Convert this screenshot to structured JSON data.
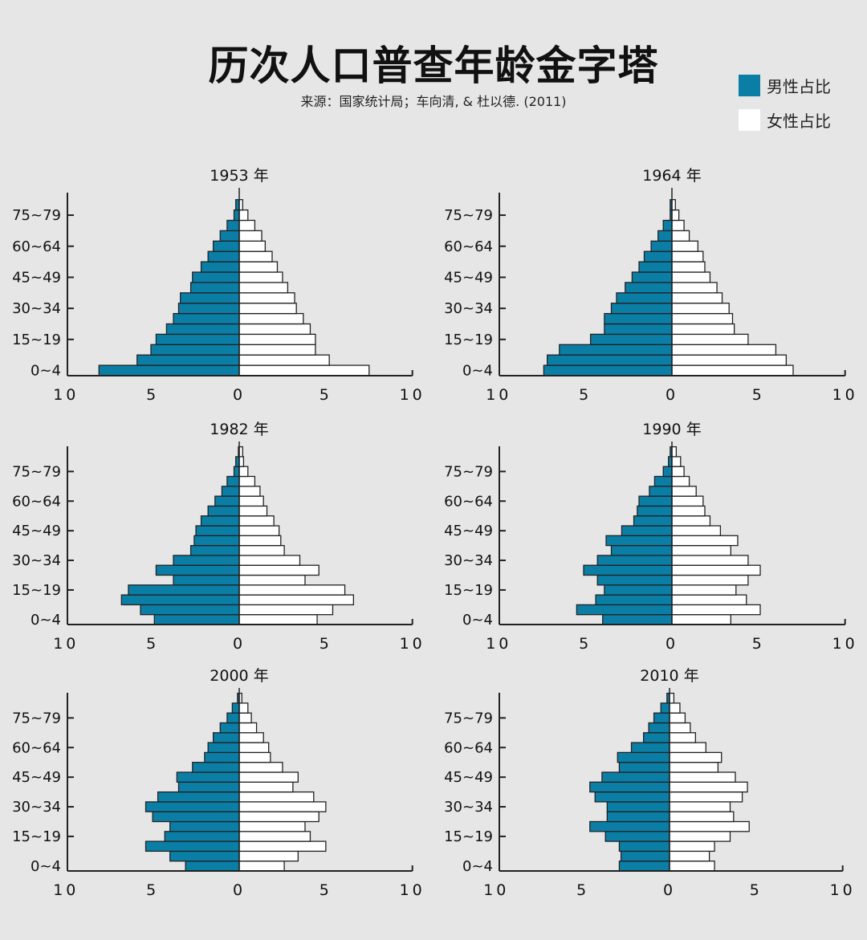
{
  "header": {
    "title": "历次人口普查年龄金字塔",
    "subtitle": "来源：国家统计局；车向清, & 杜以德. (2011)"
  },
  "legend": [
    {
      "label": "男性占比",
      "color": "#0b7ea6"
    },
    {
      "label": "女性占比",
      "color": "#ffffff"
    }
  ],
  "chart_data": [
    {
      "type": "bar",
      "orientation": "horizontal-pyramid",
      "title": "1953 年",
      "y_tick_labels": [
        "0~4",
        "15~19",
        "30~34",
        "45~49",
        "60~64",
        "75~79"
      ],
      "x_tick_labels": [
        "10",
        "5",
        "0",
        "5",
        "10"
      ],
      "xlim": [
        -10,
        10
      ],
      "series": [
        {
          "name": "男性占比",
          "values": [
            8.1,
            5.9,
            5.1,
            4.8,
            4.2,
            3.8,
            3.5,
            3.4,
            2.8,
            2.7,
            2.2,
            1.8,
            1.5,
            1.1,
            0.7,
            0.3,
            0.2
          ]
        },
        {
          "name": "女性占比",
          "values": [
            7.5,
            5.2,
            4.4,
            4.4,
            4.1,
            3.7,
            3.3,
            3.2,
            2.8,
            2.5,
            2.2,
            1.9,
            1.5,
            1.3,
            0.9,
            0.5,
            0.2
          ]
        }
      ]
    },
    {
      "type": "bar",
      "orientation": "horizontal-pyramid",
      "title": "1964 年",
      "y_tick_labels": [
        "0~4",
        "15~19",
        "30~34",
        "45~49",
        "60~64",
        "75~79"
      ],
      "x_tick_labels": [
        "10",
        "5",
        "0",
        "5",
        "10"
      ],
      "xlim": [
        -10,
        10
      ],
      "series": [
        {
          "name": "男性占比",
          "values": [
            7.4,
            7.2,
            6.5,
            4.7,
            3.9,
            3.9,
            3.5,
            3.2,
            2.7,
            2.3,
            1.9,
            1.6,
            1.2,
            0.8,
            0.5,
            0.1,
            0.1
          ]
        },
        {
          "name": "女性占比",
          "values": [
            7.0,
            6.6,
            6.0,
            4.4,
            3.6,
            3.5,
            3.3,
            2.9,
            2.6,
            2.2,
            1.9,
            1.8,
            1.5,
            1.0,
            0.7,
            0.4,
            0.2
          ]
        }
      ]
    },
    {
      "type": "bar",
      "orientation": "horizontal-pyramid",
      "title": "1982 年",
      "y_tick_labels": [
        "0~4",
        "15~19",
        "30~34",
        "45~49",
        "60~64",
        "75~79"
      ],
      "x_tick_labels": [
        "10",
        "5",
        "0",
        "5",
        "10"
      ],
      "xlim": [
        -10,
        10
      ],
      "series": [
        {
          "name": "男性占比",
          "values": [
            4.9,
            5.7,
            6.8,
            6.4,
            3.8,
            4.8,
            3.8,
            2.8,
            2.6,
            2.5,
            2.2,
            1.8,
            1.4,
            1.0,
            0.7,
            0.3,
            0.2,
            0.05
          ]
        },
        {
          "name": "女性占比",
          "values": [
            4.5,
            5.4,
            6.6,
            6.1,
            3.8,
            4.6,
            3.5,
            2.6,
            2.4,
            2.3,
            2.0,
            1.6,
            1.4,
            1.2,
            0.9,
            0.5,
            0.25,
            0.2
          ]
        }
      ]
    },
    {
      "type": "bar",
      "orientation": "horizontal-pyramid",
      "title": "1990 年",
      "y_tick_labels": [
        "0~4",
        "15~19",
        "30~34",
        "45~49",
        "60~64",
        "75~79"
      ],
      "x_tick_labels": [
        "10",
        "5",
        "0",
        "5",
        "10"
      ],
      "xlim": [
        -10,
        10
      ],
      "series": [
        {
          "name": "男性占比",
          "values": [
            4.0,
            5.5,
            4.4,
            3.9,
            4.3,
            5.1,
            4.3,
            3.5,
            3.8,
            2.9,
            2.2,
            2.0,
            1.9,
            1.3,
            1.0,
            0.5,
            0.2,
            0.1
          ]
        },
        {
          "name": "女性占比",
          "values": [
            3.4,
            5.1,
            4.3,
            3.7,
            4.4,
            5.1,
            4.4,
            3.4,
            3.8,
            2.8,
            2.2,
            1.9,
            1.8,
            1.4,
            1.0,
            0.7,
            0.5,
            0.25
          ]
        }
      ]
    },
    {
      "type": "bar",
      "orientation": "horizontal-pyramid",
      "title": "2000 年",
      "y_tick_labels": [
        "0~4",
        "15~19",
        "30~34",
        "45~49",
        "60~64",
        "75~79"
      ],
      "x_tick_labels": [
        "10",
        "5",
        "0",
        "5",
        "10"
      ],
      "xlim": [
        -10,
        10
      ],
      "series": [
        {
          "name": "男性占比",
          "values": [
            3.1,
            4.0,
            5.4,
            4.3,
            4.0,
            5.0,
            5.4,
            4.7,
            3.5,
            3.6,
            2.7,
            2.0,
            1.8,
            1.5,
            1.1,
            0.7,
            0.4,
            0.1
          ]
        },
        {
          "name": "女性占比",
          "values": [
            2.6,
            3.4,
            5.0,
            4.1,
            3.8,
            4.6,
            5.0,
            4.3,
            3.1,
            3.4,
            2.5,
            1.8,
            1.7,
            1.4,
            1.0,
            0.7,
            0.5,
            0.15
          ]
        }
      ]
    },
    {
      "type": "bar",
      "orientation": "horizontal-pyramid",
      "title": "2010 年",
      "y_tick_labels": [
        "0~4",
        "15~19",
        "30~34",
        "45~49",
        "60~64",
        "75~79"
      ],
      "x_tick_labels": [
        "10",
        "5",
        "0",
        "5",
        "10"
      ],
      "xlim": [
        -10,
        10
      ],
      "series": [
        {
          "name": "男性占比",
          "values": [
            2.9,
            2.8,
            2.9,
            3.7,
            4.6,
            3.6,
            3.6,
            4.3,
            4.6,
            3.9,
            2.9,
            3.0,
            2.2,
            1.5,
            1.2,
            0.9,
            0.5,
            0.15
          ]
        },
        {
          "name": "女性占比",
          "values": [
            2.6,
            2.3,
            2.6,
            3.5,
            4.6,
            3.7,
            3.5,
            4.2,
            4.5,
            3.8,
            2.8,
            3.0,
            2.1,
            1.5,
            1.2,
            0.9,
            0.6,
            0.25
          ]
        }
      ]
    }
  ]
}
